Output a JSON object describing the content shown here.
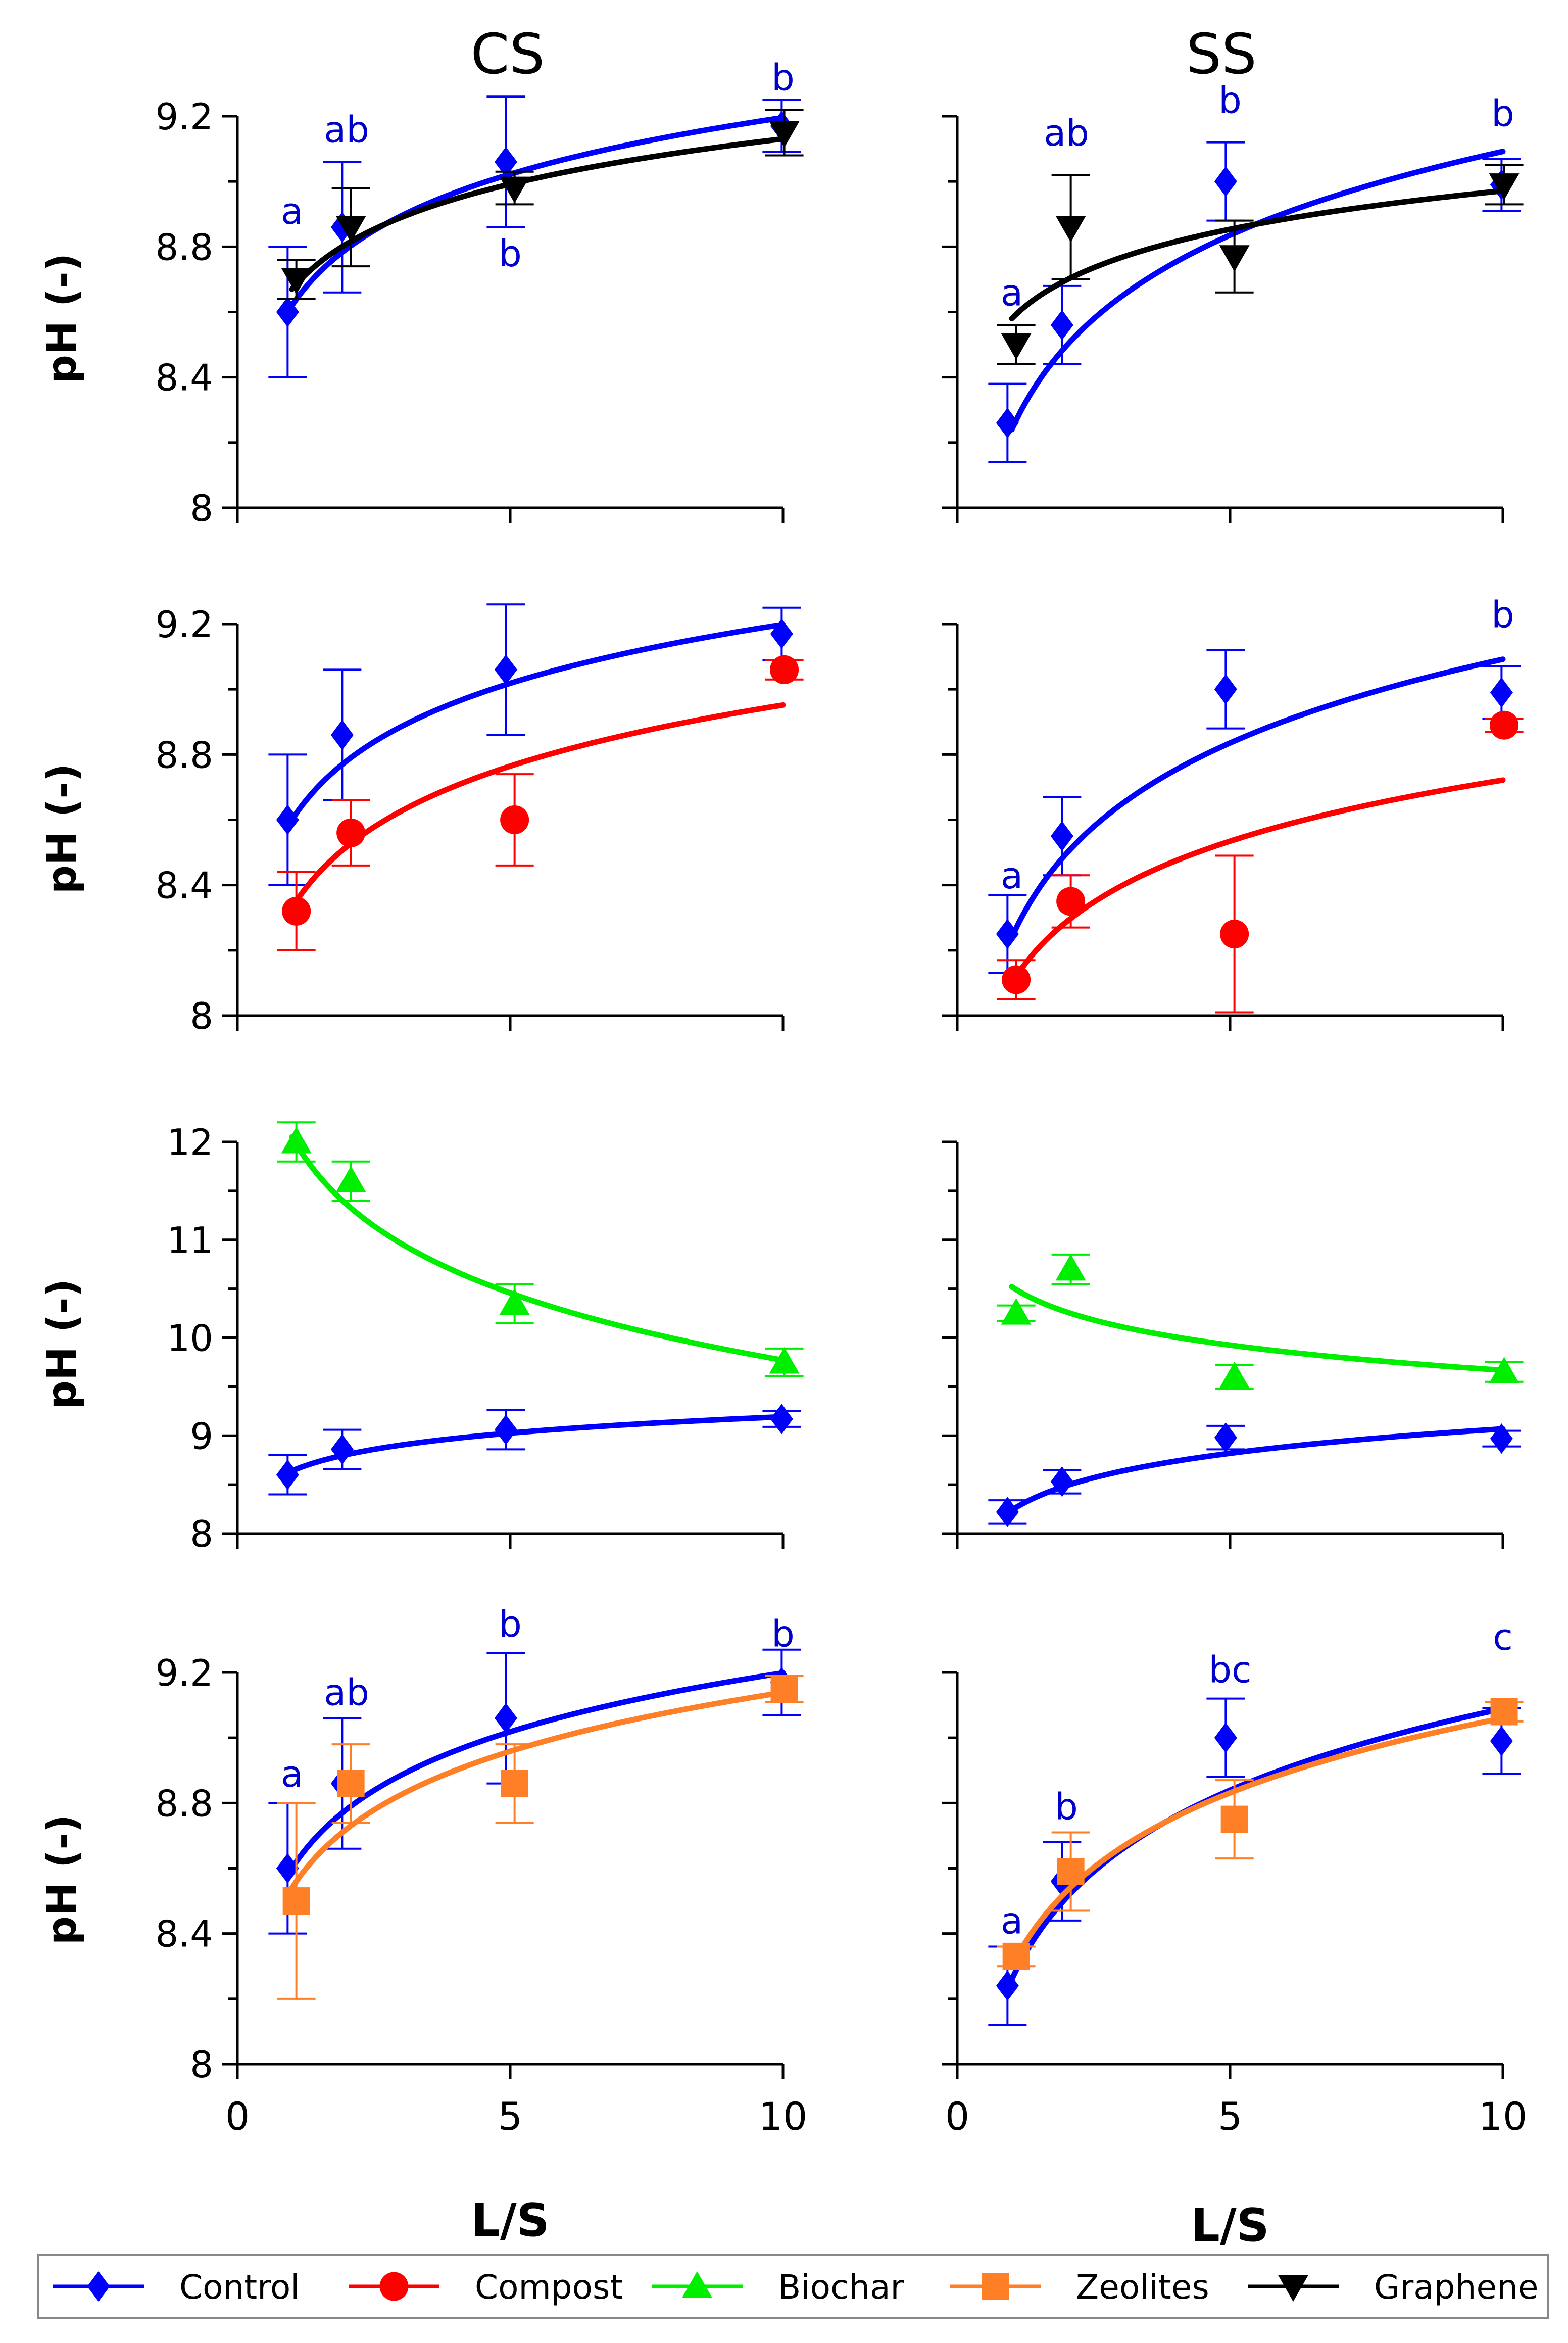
{
  "column_titles": [
    "CS",
    "SS"
  ],
  "y_label": "pH (-)",
  "x_label": "L/S",
  "x_ticks": [
    0,
    5,
    10
  ],
  "xlim": [
    0,
    10
  ],
  "legend": [
    {
      "name": "Control",
      "color": "#0000ff",
      "marker": "diamond"
    },
    {
      "name": "Compost",
      "color": "#ff0000",
      "marker": "circle"
    },
    {
      "name": "Biochar",
      "color": "#00ee00",
      "marker": "triangle-up"
    },
    {
      "name": "Zeolites",
      "color": "#ff7f27",
      "marker": "square"
    },
    {
      "name": "Graphene",
      "color": "#000000",
      "marker": "triangle-down"
    }
  ],
  "chart_data": [
    {
      "type": "scatter",
      "row": 0,
      "col": 0,
      "ylim": [
        8,
        9.2
      ],
      "y_ticks": [
        "8",
        "8.4",
        "8.8",
        "9.2"
      ],
      "series": [
        {
          "name": "Control",
          "x": [
            1,
            2,
            5,
            10
          ],
          "y": [
            8.6,
            8.86,
            9.06,
            9.17
          ],
          "err": [
            0.2,
            0.2,
            0.2,
            0.08
          ],
          "fit": {
            "type": "log",
            "a": 8.62,
            "b": 0.25
          }
        },
        {
          "name": "Graphene",
          "x": [
            1,
            2,
            5,
            10
          ],
          "y": [
            8.7,
            8.86,
            8.98,
            9.15
          ],
          "err": [
            0.06,
            0.12,
            0.05,
            0.07
          ],
          "fit": {
            "type": "log",
            "a": 8.67,
            "b": 0.2
          }
        }
      ],
      "annotations": [
        {
          "text": "a",
          "x": 1,
          "y": 8.87
        },
        {
          "text": "ab",
          "x": 2,
          "y": 9.12
        },
        {
          "text": "b",
          "x": 5,
          "y": 8.74
        },
        {
          "text": "b",
          "x": 10,
          "y": 9.28
        }
      ]
    },
    {
      "type": "scatter",
      "row": 0,
      "col": 1,
      "ylim": [
        8,
        9.2
      ],
      "y_ticks": [
        "",
        "",
        "",
        ""
      ],
      "series": [
        {
          "name": "Control",
          "x": [
            1,
            2,
            5,
            10
          ],
          "y": [
            8.26,
            8.56,
            9.0,
            8.99
          ],
          "err": [
            0.12,
            0.12,
            0.12,
            0.08
          ],
          "fit": {
            "type": "log",
            "a": 8.24,
            "b": 0.37
          }
        },
        {
          "name": "Graphene",
          "x": [
            1,
            2,
            5,
            10
          ],
          "y": [
            8.5,
            8.86,
            8.77,
            8.99
          ],
          "err": [
            0.06,
            0.16,
            0.11,
            0.06
          ],
          "fit": {
            "type": "log",
            "a": 8.58,
            "b": 0.17
          }
        }
      ],
      "annotations": [
        {
          "text": "a",
          "x": 1,
          "y": 8.62
        },
        {
          "text": "ab",
          "x": 2,
          "y": 9.11
        },
        {
          "text": "b",
          "x": 5,
          "y": 9.21
        },
        {
          "text": "b",
          "x": 10,
          "y": 9.17
        }
      ]
    },
    {
      "type": "scatter",
      "row": 1,
      "col": 0,
      "ylim": [
        8,
        9.2
      ],
      "y_ticks": [
        "8",
        "8.4",
        "8.8",
        "9.2"
      ],
      "series": [
        {
          "name": "Control",
          "x": [
            1,
            2,
            5,
            10
          ],
          "y": [
            8.6,
            8.86,
            9.06,
            9.17
          ],
          "err": [
            0.2,
            0.2,
            0.2,
            0.08
          ],
          "fit": {
            "type": "log",
            "a": 8.6,
            "b": 0.26
          }
        },
        {
          "name": "Compost",
          "x": [
            1,
            2,
            5,
            10
          ],
          "y": [
            8.32,
            8.56,
            8.6,
            9.06
          ],
          "err": [
            0.12,
            0.1,
            0.14,
            0.03
          ],
          "fit": {
            "type": "log",
            "a": 8.33,
            "b": 0.27
          }
        }
      ],
      "annotations": []
    },
    {
      "type": "scatter",
      "row": 1,
      "col": 1,
      "ylim": [
        8,
        9.2
      ],
      "y_ticks": [
        "",
        "",
        "",
        ""
      ],
      "series": [
        {
          "name": "Control",
          "x": [
            1,
            2,
            5,
            10
          ],
          "y": [
            8.25,
            8.55,
            9.0,
            8.99
          ],
          "err": [
            0.12,
            0.12,
            0.12,
            0.08
          ],
          "fit": {
            "type": "log",
            "a": 8.24,
            "b": 0.37
          }
        },
        {
          "name": "Compost",
          "x": [
            1,
            2,
            5,
            10
          ],
          "y": [
            8.11,
            8.35,
            8.25,
            8.89
          ],
          "err": [
            0.06,
            0.08,
            0.24,
            0.02
          ],
          "fit": {
            "type": "log",
            "a": 8.1,
            "b": 0.27
          }
        }
      ],
      "annotations": [
        {
          "text": "a",
          "x": 1,
          "y": 8.39
        },
        {
          "text": "b",
          "x": 10,
          "y": 9.19
        }
      ]
    },
    {
      "type": "scatter",
      "row": 2,
      "col": 0,
      "ylim": [
        8,
        12
      ],
      "y_ticks": [
        "8",
        "9",
        "10",
        "11",
        "12"
      ],
      "series": [
        {
          "name": "Control",
          "x": [
            1,
            2,
            5,
            10
          ],
          "y": [
            8.6,
            8.86,
            9.06,
            9.17
          ],
          "err": [
            0.2,
            0.2,
            0.2,
            0.08
          ],
          "fit": {
            "type": "log",
            "a": 8.64,
            "b": 0.24
          }
        },
        {
          "name": "Biochar",
          "x": [
            1,
            2,
            5,
            10
          ],
          "y": [
            12.0,
            11.6,
            10.35,
            9.75
          ],
          "err": [
            0.2,
            0.2,
            0.2,
            0.14
          ],
          "fit": {
            "type": "log",
            "a": 12.05,
            "b": -0.99
          }
        }
      ],
      "annotations": []
    },
    {
      "type": "scatter",
      "row": 2,
      "col": 1,
      "ylim": [
        8,
        12
      ],
      "y_ticks": [
        "",
        "",
        "",
        "",
        ""
      ],
      "series": [
        {
          "name": "Control",
          "x": [
            1,
            2,
            5,
            10
          ],
          "y": [
            8.22,
            8.53,
            8.98,
            8.97
          ],
          "err": [
            0.12,
            0.12,
            0.12,
            0.08
          ],
          "fit": {
            "type": "log",
            "a": 8.24,
            "b": 0.36
          }
        },
        {
          "name": "Biochar",
          "x": [
            1,
            2,
            5,
            10
          ],
          "y": [
            10.25,
            10.7,
            9.6,
            9.65
          ],
          "err": [
            0.08,
            0.15,
            0.12,
            0.1
          ],
          "fit": {
            "type": "log",
            "a": 10.52,
            "b": -0.37
          }
        }
      ],
      "annotations": []
    },
    {
      "type": "scatter",
      "row": 3,
      "col": 0,
      "ylim": [
        8,
        9.2
      ],
      "y_ticks": [
        "8",
        "8.4",
        "8.8",
        "9.2"
      ],
      "series": [
        {
          "name": "Control",
          "x": [
            1,
            2,
            5,
            10
          ],
          "y": [
            8.6,
            8.86,
            9.06,
            9.17
          ],
          "err": [
            0.2,
            0.2,
            0.2,
            0.1
          ],
          "fit": {
            "type": "log",
            "a": 8.6,
            "b": 0.26
          }
        },
        {
          "name": "Zeolites",
          "x": [
            1,
            2,
            5,
            10
          ],
          "y": [
            8.5,
            8.86,
            8.86,
            9.15
          ],
          "err": [
            0.3,
            0.12,
            0.12,
            0.04
          ],
          "fit": {
            "type": "log",
            "a": 8.54,
            "b": 0.26
          }
        }
      ],
      "annotations": [
        {
          "text": "a",
          "x": 1,
          "y": 8.85
        },
        {
          "text": "ab",
          "x": 2,
          "y": 9.1
        },
        {
          "text": "b",
          "x": 5,
          "y": 9.31
        },
        {
          "text": "b",
          "x": 10,
          "y": 9.28
        }
      ]
    },
    {
      "type": "scatter",
      "row": 3,
      "col": 1,
      "ylim": [
        8,
        9.2
      ],
      "y_ticks": [
        "",
        "",
        "",
        ""
      ],
      "series": [
        {
          "name": "Control",
          "x": [
            1,
            2,
            5,
            10
          ],
          "y": [
            8.24,
            8.56,
            9.0,
            8.99
          ],
          "err": [
            0.12,
            0.12,
            0.12,
            0.1
          ],
          "fit": {
            "type": "log",
            "a": 8.26,
            "b": 0.36
          }
        },
        {
          "name": "Zeolites",
          "x": [
            1,
            2,
            5,
            10
          ],
          "y": [
            8.33,
            8.59,
            8.75,
            9.08
          ],
          "err": [
            0.03,
            0.12,
            0.12,
            0.03
          ],
          "fit": {
            "type": "log",
            "a": 8.3,
            "b": 0.33
          }
        }
      ],
      "annotations": [
        {
          "text": "a",
          "x": 1,
          "y": 8.4
        },
        {
          "text": "b",
          "x": 2,
          "y": 8.75
        },
        {
          "text": "bc",
          "x": 5,
          "y": 9.17
        },
        {
          "text": "c",
          "x": 10,
          "y": 9.27
        }
      ]
    }
  ]
}
